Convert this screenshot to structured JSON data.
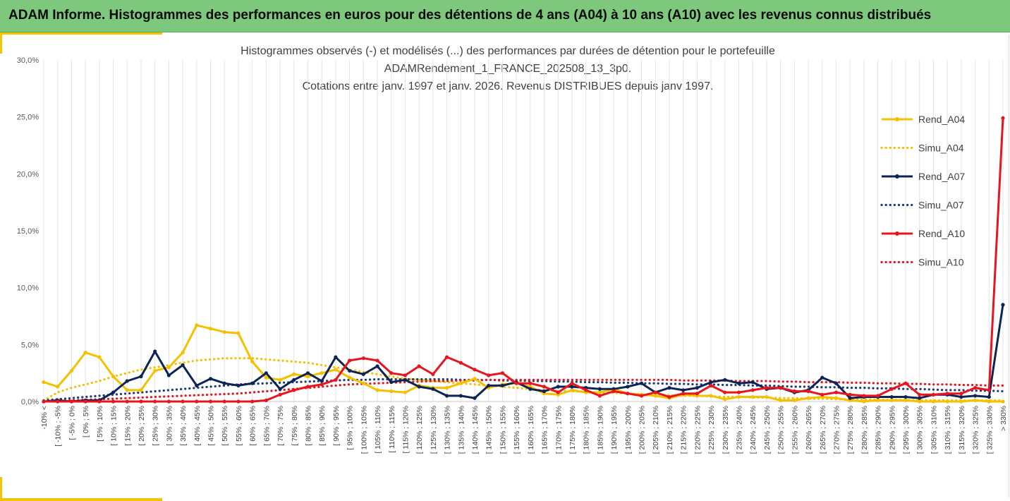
{
  "header": {
    "title": "ADAM Informe. Histogrammes des performances en euros pour des détentions de 4 ans (A04) à 10 ans (A10) avec les revenus connus distribués"
  },
  "chart_data": {
    "type": "line",
    "title_lines": [
      "Histogrammes observés (-) et modélisés (...) des performances par durées de détention pour le portefeuille",
      "ADAMRendement_1_FRANCE_202508_13_3p0.",
      "Cotations entre janv. 1997 et janv. 2026. Revenus DISTRIBUES depuis janv 1997."
    ],
    "y_ticks": [
      "0,0%",
      "5,0%",
      "10,0%",
      "15,0%",
      "20,0%",
      "25,0%",
      "30,0%"
    ],
    "ylim": [
      0,
      30
    ],
    "grid": "vertical",
    "legend_position": "right",
    "categories": [
      "-10% <",
      "[ -10% ; -5%",
      "[ -5% ; 0%",
      "[ 0% ; 5%",
      "[ 5% ; 10%",
      "[ 10% ; 15%",
      "[ 15% ; 20%",
      "[ 20% ; 25%",
      "[ 25% ; 30%",
      "[ 30% ; 35%",
      "[ 35% ; 40%",
      "[ 40% ; 45%",
      "[ 45% ; 50%",
      "[ 50% ; 55%",
      "[ 55% ; 60%",
      "[ 60% ; 65%",
      "[ 65% ; 70%",
      "[ 70% ; 75%",
      "[ 75% ; 80%",
      "[ 80% ; 85%",
      "[ 85% ; 90%",
      "[ 90% ; 95%",
      "[ 95% ; 100%",
      "[ 100% ; 105%",
      "[ 105% ; 110%",
      "[ 110% ; 115%",
      "[ 115% ; 120%",
      "[ 120% ; 125%",
      "[ 125% ; 130%",
      "[ 130% ; 135%",
      "[ 135% ; 140%",
      "[ 140% ; 145%",
      "[ 145% ; 150%",
      "[ 150% ; 155%",
      "[ 155% ; 160%",
      "[ 160% ; 165%",
      "[ 165% ; 170%",
      "[ 170% ; 175%",
      "[ 175% ; 180%",
      "[ 180% ; 185%",
      "[ 185% ; 190%",
      "[ 190% ; 195%",
      "[ 195% ; 200%",
      "[ 200% ; 205%",
      "[ 205% ; 210%",
      "[ 210% ; 215%",
      "[ 215% ; 220%",
      "[ 220% ; 225%",
      "[ 225% ; 230%",
      "[ 230% ; 235%",
      "[ 235% ; 240%",
      "[ 240% ; 245%",
      "[ 245% ; 250%",
      "[ 250% ; 255%",
      "[ 255% ; 260%",
      "[ 260% ; 265%",
      "[ 265% ; 270%",
      "[ 270% ; 275%",
      "[ 275% ; 280%",
      "[ 280% ; 285%",
      "[ 285% ; 290%",
      "[ 290% ; 295%",
      "[ 295% ; 300%",
      "[ 300% ; 305%",
      "[ 305% ; 310%",
      "[ 310% ; 315%",
      "[ 315% ; 320%",
      "[ 320% ; 325%",
      "[ 325% ; 330%",
      "> 330%"
    ],
    "series": [
      {
        "name": "Rend_A04",
        "style": "solid-markers",
        "color": "#f5c000",
        "values": [
          1.7,
          1.3,
          2.7,
          4.3,
          3.9,
          2.2,
          1.0,
          1.0,
          2.7,
          3.0,
          4.3,
          6.7,
          6.4,
          6.1,
          6.0,
          3.5,
          2.1,
          1.9,
          2.4,
          2.2,
          2.5,
          2.8,
          2.1,
          1.6,
          1.0,
          0.9,
          0.8,
          1.4,
          1.2,
          1.2,
          1.6,
          2.0,
          1.2,
          1.5,
          1.6,
          1.3,
          0.7,
          0.6,
          1.0,
          0.8,
          0.8,
          1.1,
          0.7,
          0.6,
          0.5,
          0.3,
          0.6,
          0.5,
          0.5,
          0.2,
          0.4,
          0.4,
          0.4,
          0.1,
          0.1,
          0.3,
          0.4,
          0.3,
          0.1,
          0.0,
          0.1,
          0.1,
          0.1,
          0.0,
          0.0,
          0.0,
          0.0,
          0.1,
          0.0,
          0.0
        ]
      },
      {
        "name": "Simu_A04",
        "style": "dotted",
        "color": "#f5c000",
        "values": [
          0.1,
          0.8,
          1.2,
          1.5,
          1.8,
          2.2,
          2.5,
          2.8,
          3.0,
          3.2,
          3.4,
          3.6,
          3.7,
          3.8,
          3.8,
          3.8,
          3.7,
          3.6,
          3.5,
          3.4,
          3.2,
          3.0,
          2.8,
          2.6,
          2.4,
          2.2,
          2.0,
          1.9,
          1.8,
          1.7,
          1.6,
          1.5,
          1.4,
          1.3,
          1.2,
          1.1,
          1.0,
          0.95,
          0.9,
          0.85,
          0.8,
          0.75,
          0.7,
          0.65,
          0.6,
          0.55,
          0.5,
          0.5,
          0.45,
          0.4,
          0.4,
          0.35,
          0.35,
          0.3,
          0.3,
          0.25,
          0.25,
          0.2,
          0.2,
          0.2,
          0.15,
          0.15,
          0.15,
          0.1,
          0.1,
          0.1,
          0.1,
          0.1,
          0.1,
          0.1
        ]
      },
      {
        "name": "Rend_A07",
        "style": "solid-markers",
        "color": "#0d2454",
        "values": [
          0.0,
          0.1,
          0.0,
          0.1,
          0.1,
          0.8,
          1.8,
          2.2,
          4.4,
          2.3,
          3.2,
          1.4,
          2.0,
          1.6,
          1.4,
          1.6,
          2.5,
          1.1,
          1.9,
          2.5,
          1.8,
          3.9,
          2.7,
          2.4,
          3.1,
          1.7,
          1.9,
          1.3,
          1.1,
          0.5,
          0.5,
          0.3,
          1.4,
          1.4,
          1.7,
          1.1,
          0.9,
          1.3,
          1.3,
          1.2,
          1.1,
          1.1,
          1.3,
          1.6,
          0.8,
          1.2,
          1.0,
          1.2,
          1.7,
          1.9,
          1.6,
          1.7,
          1.1,
          1.2,
          0.8,
          1.0,
          2.1,
          1.6,
          0.3,
          0.4,
          0.4,
          0.4,
          0.4,
          0.3,
          0.6,
          0.6,
          0.4,
          0.5,
          0.4,
          8.5
        ]
      },
      {
        "name": "Simu_A07",
        "style": "dotted",
        "color": "#1f3a78",
        "values": [
          0.1,
          0.2,
          0.3,
          0.4,
          0.5,
          0.6,
          0.7,
          0.8,
          0.9,
          1.0,
          1.1,
          1.2,
          1.3,
          1.4,
          1.5,
          1.55,
          1.6,
          1.65,
          1.7,
          1.75,
          1.8,
          1.85,
          1.9,
          1.9,
          1.95,
          1.95,
          1.95,
          1.95,
          1.95,
          1.95,
          1.9,
          1.9,
          1.9,
          1.85,
          1.85,
          1.8,
          1.8,
          1.75,
          1.75,
          1.7,
          1.7,
          1.65,
          1.65,
          1.6,
          1.6,
          1.55,
          1.55,
          1.5,
          1.5,
          1.45,
          1.45,
          1.4,
          1.4,
          1.35,
          1.3,
          1.3,
          1.25,
          1.25,
          1.2,
          1.2,
          1.15,
          1.15,
          1.1,
          1.1,
          1.05,
          1.0,
          1.0,
          0.95,
          0.95,
          0.9
        ]
      },
      {
        "name": "Rend_A10",
        "style": "solid-markers",
        "color": "#e8141e",
        "values": [
          0.0,
          0.0,
          0.0,
          0.0,
          0.0,
          0.0,
          0.0,
          0.0,
          0.0,
          0.0,
          0.0,
          0.0,
          0.0,
          0.0,
          0.0,
          0.0,
          0.1,
          0.6,
          1.0,
          1.3,
          1.5,
          1.9,
          3.6,
          3.8,
          3.6,
          2.5,
          2.3,
          3.1,
          2.4,
          3.9,
          3.4,
          2.8,
          2.3,
          2.5,
          1.6,
          1.6,
          1.3,
          0.8,
          1.6,
          1.0,
          0.5,
          0.9,
          0.7,
          0.5,
          0.8,
          0.4,
          0.7,
          0.7,
          1.4,
          0.8,
          0.8,
          1.0,
          1.2,
          1.2,
          0.9,
          0.9,
          0.6,
          0.8,
          0.6,
          0.5,
          0.5,
          1.1,
          1.6,
          0.6,
          0.6,
          0.7,
          0.7,
          1.2,
          1.0,
          24.9
        ]
      },
      {
        "name": "Simu_A10",
        "style": "dotted",
        "color": "#e8141e",
        "values": [
          0.02,
          0.05,
          0.1,
          0.15,
          0.2,
          0.25,
          0.3,
          0.35,
          0.4,
          0.45,
          0.5,
          0.55,
          0.6,
          0.65,
          0.7,
          0.8,
          0.9,
          1.0,
          1.1,
          1.2,
          1.3,
          1.4,
          1.5,
          1.55,
          1.6,
          1.65,
          1.7,
          1.75,
          1.8,
          1.8,
          1.85,
          1.85,
          1.9,
          1.9,
          1.9,
          1.9,
          1.9,
          1.9,
          1.9,
          1.9,
          1.9,
          1.9,
          1.9,
          1.9,
          1.9,
          1.9,
          1.85,
          1.85,
          1.85,
          1.85,
          1.8,
          1.8,
          1.8,
          1.75,
          1.75,
          1.7,
          1.7,
          1.7,
          1.65,
          1.65,
          1.6,
          1.6,
          1.55,
          1.55,
          1.5,
          1.5,
          1.45,
          1.45,
          1.4,
          1.4
        ]
      }
    ]
  }
}
